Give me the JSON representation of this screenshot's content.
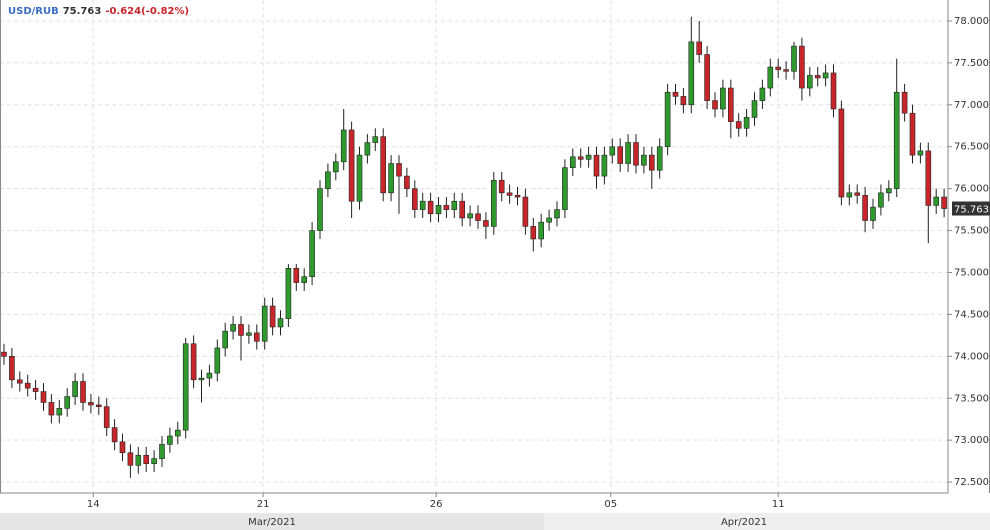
{
  "header": {
    "symbol": "USD/RUB",
    "price": 75.763,
    "change": "-0.624(-0.82%)"
  },
  "chart_data": {
    "type": "candlestick",
    "grid": true,
    "up_color": "#2e9a2e",
    "down_color": "#c8262b",
    "ylim": [
      72.37,
      78.25
    ],
    "yticks": [
      {
        "value": 72.5,
        "label": "72.500"
      },
      {
        "value": 73,
        "label": "73.000"
      },
      {
        "value": 73.5,
        "label": "73.500"
      },
      {
        "value": 74,
        "label": "74.000"
      },
      {
        "value": 74.5,
        "label": "74.500"
      },
      {
        "value": 75,
        "label": "75.000"
      },
      {
        "value": 75.5,
        "label": "75.500"
      },
      {
        "value": 76,
        "label": "76.000"
      },
      {
        "value": 76.5,
        "label": "76.500"
      },
      {
        "value": 77,
        "label": "77.000"
      },
      {
        "value": 77.5,
        "label": "77.500"
      },
      {
        "value": 78,
        "label": "78.000"
      }
    ],
    "xticks": [
      {
        "value": 11.3,
        "label": "14"
      },
      {
        "value": 32.8,
        "label": "21"
      },
      {
        "value": 54.7,
        "label": "26"
      },
      {
        "value": 76.8,
        "label": "05"
      },
      {
        "value": 98,
        "label": "11"
      }
    ],
    "months": [
      "Mar/2021",
      "Apr/2021"
    ],
    "open": [
      74.05,
      74.0,
      73.72,
      73.68,
      73.62,
      73.58,
      73.45,
      73.3,
      73.38,
      73.52,
      73.7,
      73.45,
      73.42,
      73.4,
      73.15,
      72.98,
      72.85,
      72.7,
      72.82,
      72.72,
      72.78,
      72.95,
      73.05,
      73.12,
      74.15,
      73.72,
      73.74,
      73.8,
      74.1,
      74.3,
      74.38,
      74.25,
      74.28,
      74.18,
      74.6,
      74.35,
      74.45,
      75.05,
      74.88,
      74.95,
      75.5,
      76.0,
      76.2,
      76.32,
      76.7,
      75.85,
      76.4,
      76.55,
      76.62,
      75.95,
      76.3,
      76.15,
      76.0,
      75.75,
      75.85,
      75.7,
      75.8,
      75.75,
      75.85,
      75.65,
      75.7,
      75.62,
      75.55,
      76.1,
      75.95,
      75.92,
      75.9,
      75.55,
      75.4,
      75.6,
      75.65,
      75.75,
      76.25,
      76.38,
      76.35,
      76.4,
      76.15,
      76.4,
      76.5,
      76.3,
      76.55,
      76.28,
      76.4,
      76.22,
      76.5,
      77.15,
      77.1,
      77.0,
      77.75,
      77.6,
      77.05,
      76.95,
      77.2,
      76.8,
      76.72,
      76.85,
      77.05,
      77.2,
      77.45,
      77.42,
      77.4,
      77.7,
      77.2,
      77.35,
      77.32,
      77.38,
      76.95,
      75.9,
      75.95,
      75.92,
      75.62,
      75.78,
      75.95,
      76.0,
      77.15,
      76.9,
      76.4,
      76.45,
      75.8,
      75.9
    ],
    "high": [
      74.15,
      74.1,
      73.82,
      73.78,
      73.72,
      73.68,
      73.55,
      73.48,
      73.62,
      73.8,
      73.8,
      73.55,
      73.52,
      73.5,
      73.25,
      73.08,
      72.95,
      72.92,
      72.92,
      72.88,
      73.05,
      73.15,
      73.22,
      74.22,
      74.25,
      73.84,
      73.9,
      74.2,
      74.4,
      74.48,
      74.48,
      74.38,
      74.38,
      74.7,
      74.7,
      74.55,
      75.1,
      75.1,
      75.05,
      75.6,
      76.1,
      76.3,
      76.42,
      76.95,
      76.8,
      76.5,
      76.65,
      76.72,
      76.72,
      76.4,
      76.4,
      76.25,
      76.1,
      75.95,
      75.95,
      75.9,
      75.9,
      75.95,
      75.95,
      75.8,
      75.8,
      75.72,
      76.2,
      76.2,
      76.05,
      76.02,
      76.0,
      75.65,
      75.7,
      75.75,
      75.85,
      76.35,
      76.48,
      76.48,
      76.5,
      76.5,
      76.5,
      76.6,
      76.6,
      76.65,
      76.65,
      76.5,
      76.5,
      76.6,
      77.25,
      77.25,
      77.2,
      78.05,
      78.0,
      77.7,
      77.15,
      77.3,
      77.3,
      76.9,
      76.95,
      77.15,
      77.3,
      77.55,
      77.55,
      77.52,
      77.75,
      77.8,
      77.45,
      77.45,
      77.48,
      77.48,
      77.05,
      76.05,
      76.05,
      76.02,
      75.88,
      76.05,
      76.1,
      77.55,
      77.25,
      77.0,
      76.55,
      76.55,
      76.0,
      76.0
    ],
    "low": [
      73.9,
      73.62,
      73.58,
      73.52,
      73.48,
      73.35,
      73.2,
      73.2,
      73.28,
      73.42,
      73.35,
      73.32,
      73.3,
      73.05,
      72.88,
      72.75,
      72.55,
      72.6,
      72.62,
      72.62,
      72.68,
      72.85,
      72.95,
      73.02,
      73.62,
      73.45,
      73.64,
      73.7,
      74.0,
      74.2,
      73.95,
      74.15,
      74.08,
      74.08,
      74.25,
      74.25,
      74.35,
      74.78,
      74.78,
      74.85,
      75.4,
      75.9,
      76.1,
      76.22,
      75.65,
      75.75,
      76.3,
      76.45,
      75.85,
      75.85,
      75.7,
      75.9,
      75.65,
      75.65,
      75.6,
      75.6,
      75.65,
      75.65,
      75.55,
      75.55,
      75.52,
      75.4,
      75.45,
      75.85,
      75.82,
      75.8,
      75.45,
      75.25,
      75.3,
      75.5,
      75.55,
      75.65,
      76.15,
      76.25,
      76.25,
      76.0,
      76.05,
      76.3,
      76.2,
      76.2,
      76.18,
      76.18,
      76.0,
      76.12,
      76.4,
      77.0,
      76.9,
      76.9,
      77.5,
      76.95,
      76.85,
      76.85,
      76.6,
      76.62,
      76.62,
      76.75,
      76.95,
      77.1,
      77.32,
      77.3,
      77.3,
      77.05,
      77.1,
      77.22,
      77.22,
      76.85,
      75.8,
      75.8,
      75.82,
      75.48,
      75.52,
      75.68,
      75.85,
      75.9,
      76.8,
      76.3,
      76.3,
      75.35,
      75.7,
      75.66
    ],
    "close": [
      74.0,
      73.72,
      73.68,
      73.62,
      73.58,
      73.45,
      73.3,
      73.38,
      73.52,
      73.7,
      73.45,
      73.42,
      73.4,
      73.15,
      72.98,
      72.85,
      72.7,
      72.82,
      72.72,
      72.78,
      72.95,
      73.05,
      73.12,
      74.15,
      73.72,
      73.74,
      73.8,
      74.1,
      74.3,
      74.38,
      74.25,
      74.28,
      74.18,
      74.6,
      74.35,
      74.45,
      75.05,
      74.88,
      74.95,
      75.5,
      76.0,
      76.2,
      76.32,
      76.7,
      75.85,
      76.4,
      76.55,
      76.62,
      75.95,
      76.3,
      76.15,
      76.0,
      75.75,
      75.85,
      75.7,
      75.8,
      75.75,
      75.85,
      75.65,
      75.7,
      75.62,
      75.55,
      76.1,
      75.95,
      75.92,
      75.9,
      75.55,
      75.4,
      75.6,
      75.65,
      75.75,
      76.25,
      76.38,
      76.35,
      76.4,
      76.15,
      76.4,
      76.5,
      76.3,
      76.55,
      76.28,
      76.4,
      76.22,
      76.5,
      77.15,
      77.1,
      77.0,
      77.75,
      77.6,
      77.05,
      76.95,
      77.2,
      76.8,
      76.72,
      76.85,
      77.05,
      77.2,
      77.45,
      77.42,
      77.4,
      77.7,
      77.2,
      77.35,
      77.32,
      77.38,
      76.95,
      75.9,
      75.95,
      75.92,
      75.62,
      75.78,
      75.95,
      76.0,
      77.15,
      76.9,
      76.4,
      76.45,
      75.8,
      75.9,
      75.763
    ]
  }
}
